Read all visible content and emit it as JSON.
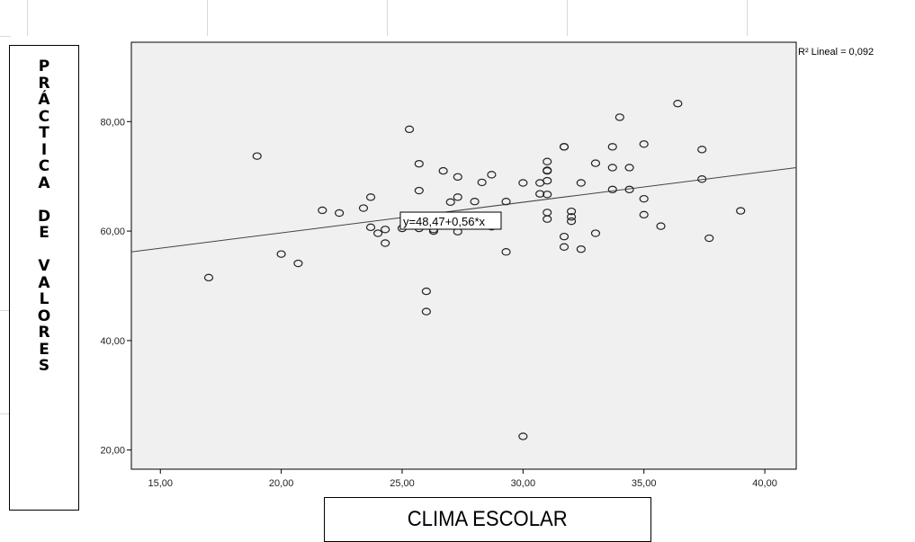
{
  "chart_data": {
    "type": "scatter",
    "title": "",
    "xlabel": "CLIMA ESCOLAR",
    "ylabel": "PRÁCTICA DE VALORES",
    "xlim": [
      13.8,
      41.3
    ],
    "ylim": [
      16.5,
      94.5
    ],
    "x_ticks": [
      "15,00",
      "20,00",
      "25,00",
      "30,00",
      "35,00",
      "40,00"
    ],
    "y_ticks": [
      "20,00",
      "40,00",
      "60,00",
      "80,00"
    ],
    "grid": false,
    "fit_line": {
      "intercept": 48.47,
      "slope": 0.56
    },
    "fit_equation_label": "y=48,47+0,56*x",
    "r2_label": "R² Lineal = 0,092",
    "points": [
      [
        17.0,
        51.5
      ],
      [
        19.0,
        73.7
      ],
      [
        20.0,
        55.8
      ],
      [
        20.7,
        54.1
      ],
      [
        21.7,
        63.8
      ],
      [
        22.4,
        63.3
      ],
      [
        23.4,
        64.2
      ],
      [
        23.7,
        60.7
      ],
      [
        23.7,
        66.2
      ],
      [
        24.0,
        59.6
      ],
      [
        24.3,
        57.8
      ],
      [
        24.3,
        60.3
      ],
      [
        25.0,
        60.5
      ],
      [
        25.3,
        78.6
      ],
      [
        25.7,
        72.3
      ],
      [
        25.7,
        67.4
      ],
      [
        25.7,
        60.5
      ],
      [
        26.0,
        49.0
      ],
      [
        26.0,
        45.3
      ],
      [
        26.0,
        62.3
      ],
      [
        26.3,
        60.0
      ],
      [
        26.3,
        60.3
      ],
      [
        26.7,
        71.0
      ],
      [
        27.0,
        65.3
      ],
      [
        27.3,
        69.9
      ],
      [
        27.3,
        66.2
      ],
      [
        27.3,
        59.9
      ],
      [
        28.0,
        65.4
      ],
      [
        28.3,
        68.9
      ],
      [
        28.7,
        70.3
      ],
      [
        28.7,
        60.8
      ],
      [
        29.3,
        56.2
      ],
      [
        29.3,
        65.4
      ],
      [
        30.0,
        68.8
      ],
      [
        30.0,
        22.5
      ],
      [
        30.7,
        68.8
      ],
      [
        30.7,
        66.8
      ],
      [
        31.0,
        72.7
      ],
      [
        31.0,
        71.1
      ],
      [
        31.0,
        71.0
      ],
      [
        31.0,
        69.2
      ],
      [
        31.0,
        66.7
      ],
      [
        31.0,
        63.4
      ],
      [
        31.0,
        62.2
      ],
      [
        31.7,
        75.4
      ],
      [
        31.7,
        75.4
      ],
      [
        31.7,
        59.0
      ],
      [
        31.7,
        57.1
      ],
      [
        32.0,
        63.6
      ],
      [
        32.0,
        62.6
      ],
      [
        32.0,
        61.8
      ],
      [
        32.4,
        68.8
      ],
      [
        32.4,
        56.7
      ],
      [
        33.0,
        72.4
      ],
      [
        33.0,
        59.6
      ],
      [
        33.7,
        75.4
      ],
      [
        33.7,
        71.6
      ],
      [
        33.7,
        67.6
      ],
      [
        34.0,
        80.8
      ],
      [
        34.4,
        71.6
      ],
      [
        34.4,
        67.6
      ],
      [
        35.0,
        75.9
      ],
      [
        35.0,
        65.9
      ],
      [
        35.0,
        63.0
      ],
      [
        35.7,
        60.9
      ],
      [
        36.4,
        83.3
      ],
      [
        37.4,
        74.9
      ],
      [
        37.4,
        69.5
      ],
      [
        37.7,
        58.7
      ],
      [
        39.0,
        63.7
      ]
    ]
  }
}
